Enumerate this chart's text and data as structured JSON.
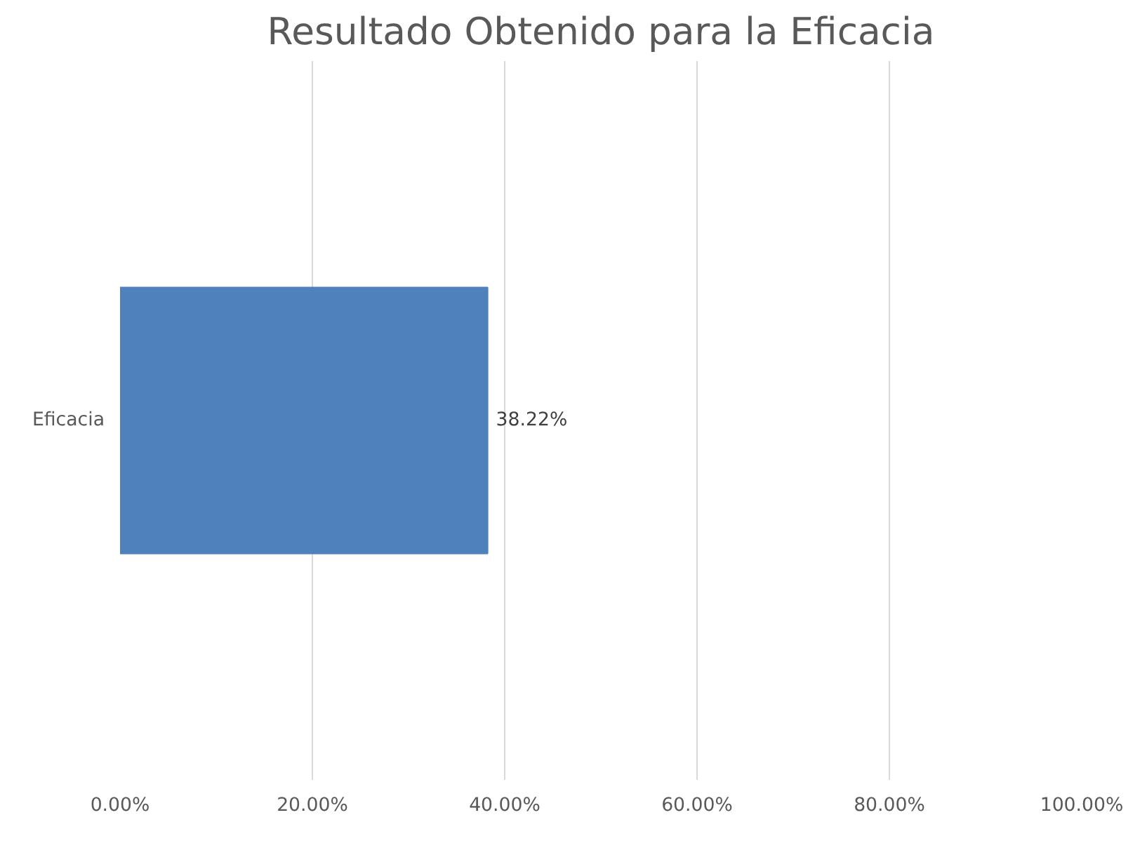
{
  "chart_data": {
    "type": "bar",
    "orientation": "horizontal",
    "title": "Resultado Obtenido para la Eficacia",
    "categories": [
      "Eficacia"
    ],
    "values": [
      38.22
    ],
    "value_labels": [
      "38.22%"
    ],
    "color": "#4f81bd",
    "xlim": [
      0,
      100
    ],
    "xticks": [
      {
        "value": 0,
        "label": "0.00%"
      },
      {
        "value": 20,
        "label": "20.00%"
      },
      {
        "value": 40,
        "label": "40.00%"
      },
      {
        "value": 60,
        "label": "60.00%"
      },
      {
        "value": 80,
        "label": "80.00%"
      },
      {
        "value": 100,
        "label": "100.00%"
      }
    ],
    "grid": "x"
  }
}
